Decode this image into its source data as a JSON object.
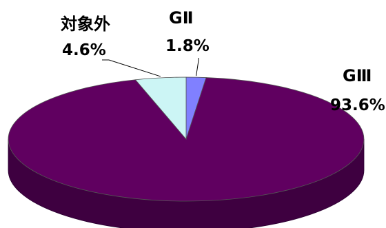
{
  "chart_data": {
    "type": "pie",
    "style": "3d",
    "categories": [
      "GⅡ",
      "GⅢ",
      "対象外"
    ],
    "values": [
      1.8,
      93.6,
      4.6
    ],
    "value_labels": [
      "1.8%",
      "93.6%",
      "4.6%"
    ],
    "colors": [
      "#8080ff",
      "#600060",
      "#ccf5f5"
    ],
    "side_colors": [
      "#6060cc",
      "#3e0040",
      "#9fc9c9"
    ],
    "title": "",
    "legend": "none"
  }
}
